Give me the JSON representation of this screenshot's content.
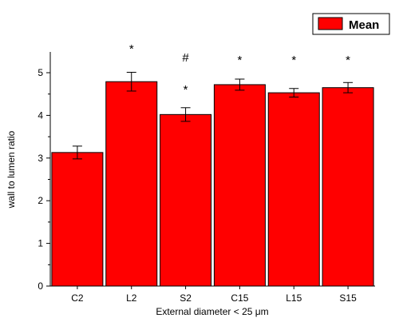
{
  "chart_data": {
    "type": "bar",
    "title": "",
    "xlabel": "External diameter < 25 μm",
    "ylabel": "wall to lumen ratio",
    "categories": [
      "C2",
      "L2",
      "S2",
      "C15",
      "L15",
      "S15"
    ],
    "series": [
      {
        "name": "Mean",
        "values": [
          3.13,
          4.79,
          4.02,
          4.72,
          4.53,
          4.65
        ],
        "errors": [
          0.15,
          0.22,
          0.16,
          0.13,
          0.1,
          0.12
        ],
        "color": "#ff0000"
      }
    ],
    "ylim": [
      0,
      5.3
    ],
    "yticks": [
      0,
      1,
      2,
      3,
      4,
      5
    ],
    "legend_position": "top-right",
    "grid": false,
    "annotations": [
      {
        "category": "L2",
        "marks": [
          "*"
        ]
      },
      {
        "category": "S2",
        "marks": [
          "#",
          "*"
        ]
      },
      {
        "category": "C15",
        "marks": [
          "*"
        ]
      },
      {
        "category": "L15",
        "marks": [
          "*"
        ]
      },
      {
        "category": "S15",
        "marks": [
          "*"
        ]
      }
    ]
  }
}
